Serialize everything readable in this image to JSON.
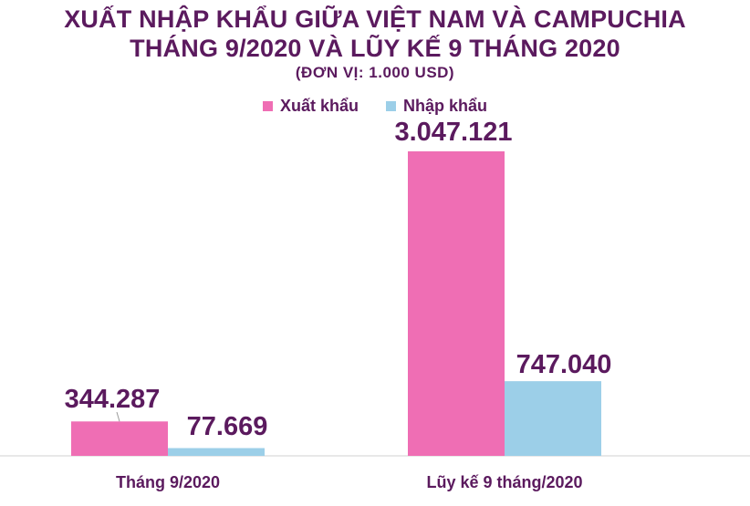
{
  "chart_data": {
    "type": "bar",
    "title": "XUẤT NHẬP KHẨU GIỮA VIỆT NAM VÀ CAMPUCHIA",
    "subtitle": "THÁNG 9/2020 VÀ LŨY KẾ 9 THÁNG 2020",
    "unit": "(ĐƠN VỊ: 1.000 USD)",
    "categories": [
      "Tháng 9/2020",
      "Lũy kế 9 tháng/2020"
    ],
    "series": [
      {
        "name": "Xuất khẩu",
        "values": [
          344287,
          3047121
        ],
        "labels": [
          "344.287",
          "3.047.121"
        ],
        "color": "#ef6eb4"
      },
      {
        "name": "Nhập khẩu",
        "values": [
          77669,
          747040
        ],
        "labels": [
          "77.669",
          "747.040"
        ],
        "color": "#9ccfe8"
      }
    ],
    "ylim": [
      0,
      3047121
    ],
    "grid": false,
    "legend_position": "top"
  }
}
